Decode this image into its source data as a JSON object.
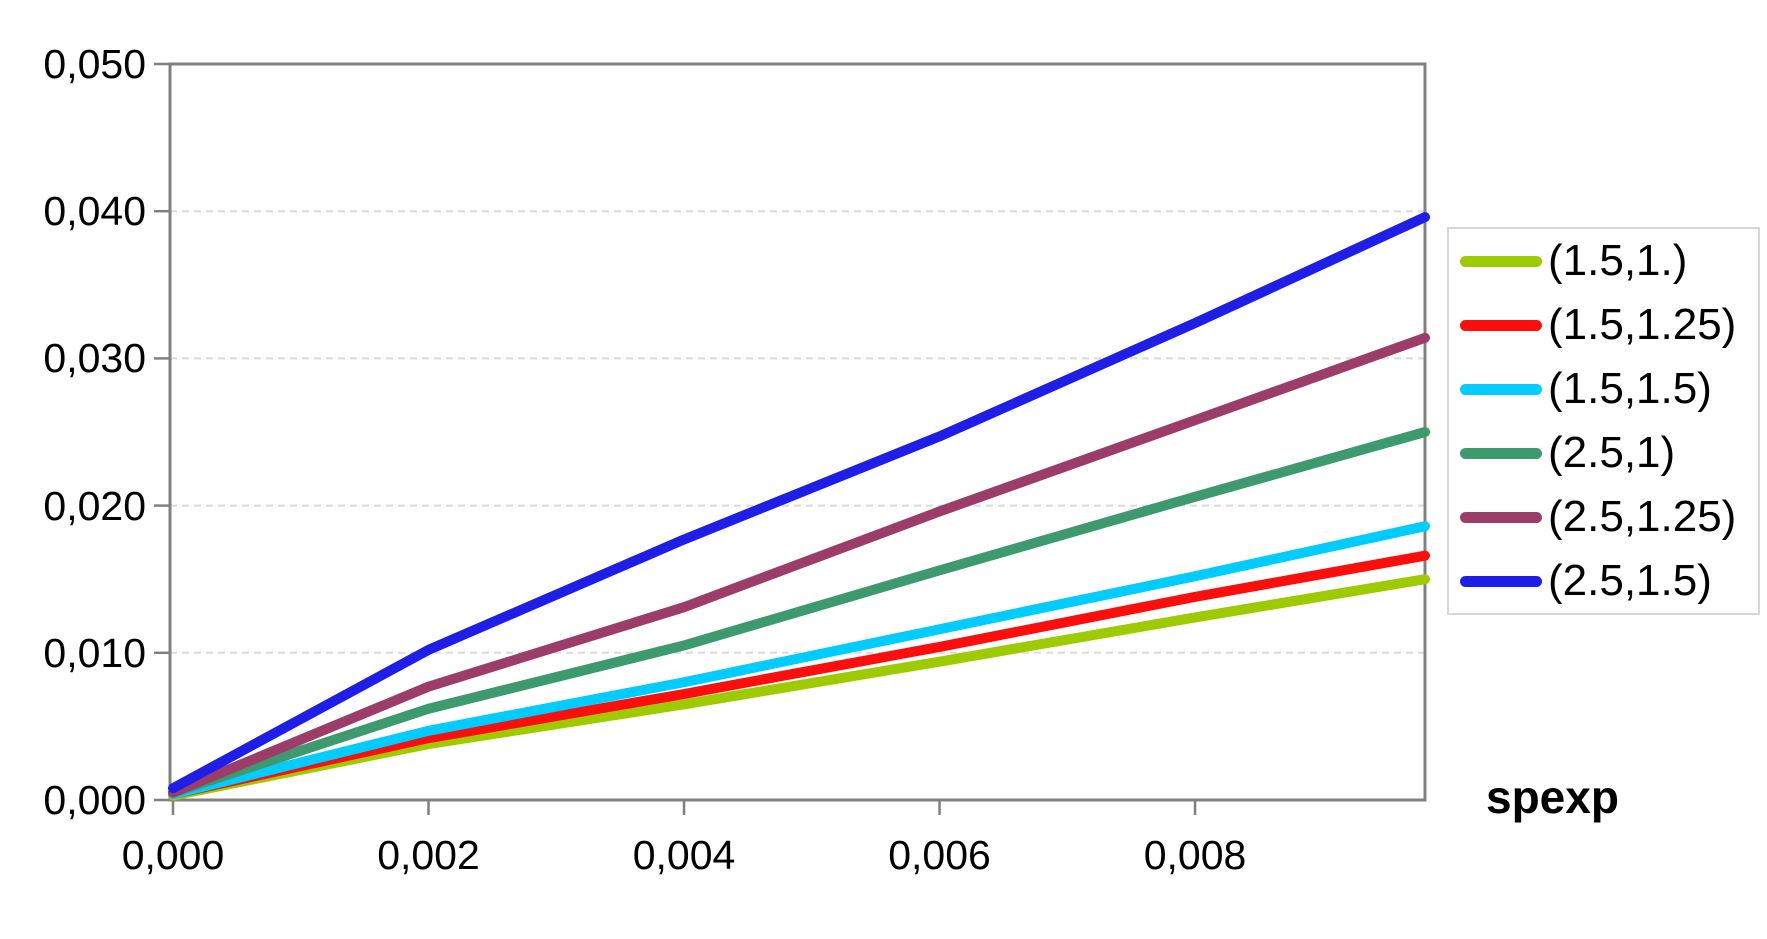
{
  "chart_data": {
    "type": "line",
    "title": "",
    "xlabel": "spexp",
    "ylabel": "",
    "xlim": [
      0,
      0.0098
    ],
    "ylim": [
      0,
      0.05
    ],
    "grid": "horizontal-dashed",
    "legend_position": "right",
    "x_ticks": {
      "labels": [
        "0,000",
        "0,002",
        "0,004",
        "0,006",
        "0,008"
      ],
      "values": [
        0,
        0.002,
        0.004,
        0.006,
        0.008
      ]
    },
    "y_ticks": {
      "labels": [
        "0,050",
        "0,040",
        "0,030",
        "0,020",
        "0,010",
        "0,000"
      ],
      "values": [
        0.05,
        0.04,
        0.03,
        0.02,
        0.01,
        0
      ]
    },
    "x": [
      0,
      0.002,
      0.004,
      0.006,
      0.008,
      0.0098
    ],
    "series": [
      {
        "name": "(1.5,1.)",
        "color": "#9DCB00",
        "values": [
          0.0003,
          0.0038,
          0.0065,
          0.0094,
          0.0124,
          0.015
        ]
      },
      {
        "name": "(1.5,1.25)",
        "color": "#FB0F0C",
        "values": [
          0.0004,
          0.0042,
          0.0072,
          0.0104,
          0.0138,
          0.0166
        ]
      },
      {
        "name": "(1.5,1.5)",
        "color": "#00CCFF",
        "values": [
          0.0004,
          0.0047,
          0.008,
          0.0116,
          0.0152,
          0.0186
        ]
      },
      {
        "name": "(2.5,1)",
        "color": "#3C9A6E",
        "values": [
          0.0005,
          0.0062,
          0.0105,
          0.0156,
          0.0206,
          0.025
        ]
      },
      {
        "name": "(2.5,1.25)",
        "color": "#9B3D68",
        "values": [
          0.0005,
          0.0077,
          0.0131,
          0.0196,
          0.0258,
          0.0314
        ]
      },
      {
        "name": "(2.5,1.5)",
        "color": "#1E1EE6",
        "values": [
          0.0008,
          0.0102,
          0.0177,
          0.0247,
          0.0324,
          0.0396
        ]
      }
    ],
    "colors": {
      "axis": "#808080",
      "grid": "#DBDBDB",
      "text": "#000000",
      "background": "#FFFFFF",
      "legend_border": "#D6D6D6"
    }
  }
}
